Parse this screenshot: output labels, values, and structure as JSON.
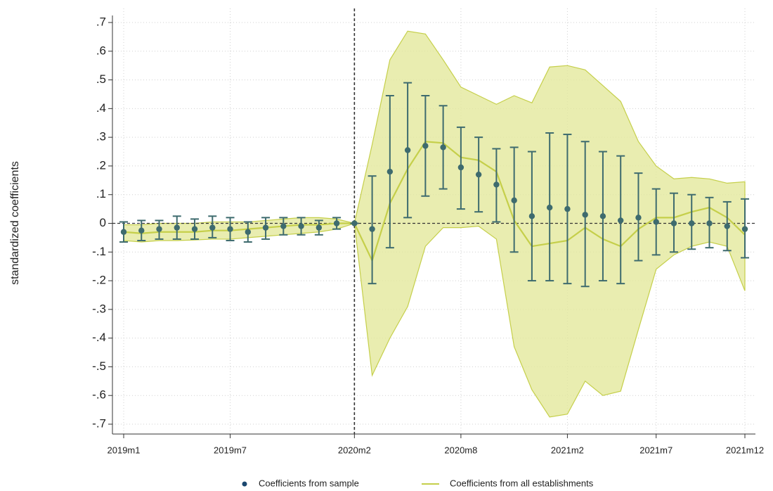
{
  "chart_data": {
    "type": "errorbar-band",
    "y_label": "standardized coefficients",
    "categories": [
      "2019m1",
      null,
      null,
      null,
      null,
      null,
      "2019m7",
      null,
      null,
      null,
      null,
      null,
      null,
      "2020m2",
      null,
      null,
      null,
      null,
      null,
      "2020m8",
      null,
      null,
      null,
      null,
      null,
      "2021m2",
      null,
      null,
      null,
      null,
      "2021m7",
      null,
      null,
      null,
      null,
      "2021m12"
    ],
    "ylim": [
      -0.7,
      0.7
    ],
    "yticks": [
      {
        "value": 0.7,
        "label": ".7"
      },
      {
        "value": 0.6,
        "label": ".6"
      },
      {
        "value": 0.5,
        "label": ".5"
      },
      {
        "value": 0.4,
        "label": ".4"
      },
      {
        "value": 0.3,
        "label": ".3"
      },
      {
        "value": 0.2,
        "label": ".2"
      },
      {
        "value": 0.1,
        "label": ".1"
      },
      0,
      {
        "value": -0.1,
        "label": "-.1"
      },
      {
        "value": -0.2,
        "label": "-.2"
      },
      {
        "value": -0.3,
        "label": "-.3"
      },
      {
        "value": -0.4,
        "label": "-.4"
      },
      {
        "value": -0.5,
        "label": "-.5"
      },
      {
        "value": -0.6,
        "label": "-.6"
      },
      {
        "value": -0.7,
        "label": "-.7"
      }
    ],
    "grid": true,
    "xline": "2020m2",
    "yline": 0,
    "series": [
      {
        "name": "Coefficients from sample",
        "color": "#1a476f",
        "bar_color": "#3e6b6e",
        "values": [
          -0.03,
          -0.025,
          -0.02,
          -0.015,
          -0.02,
          -0.015,
          -0.02,
          -0.03,
          -0.015,
          -0.01,
          -0.01,
          -0.015,
          0,
          0,
          -0.02,
          0.18,
          0.255,
          0.27,
          0.265,
          0.195,
          0.17,
          0.135,
          0.08,
          0.025,
          0.055,
          0.05,
          0.03,
          0.025,
          0.01,
          0.02,
          0.005,
          0,
          0,
          0,
          -0.01,
          -0.02
        ],
        "lower": [
          -0.065,
          -0.06,
          -0.055,
          -0.055,
          -0.055,
          -0.05,
          -0.06,
          -0.065,
          -0.055,
          -0.04,
          -0.04,
          -0.04,
          -0.02,
          0,
          -0.21,
          -0.085,
          0.02,
          0.095,
          0.12,
          0.05,
          0.04,
          0.005,
          -0.1,
          -0.2,
          -0.2,
          -0.21,
          -0.22,
          -0.2,
          -0.21,
          -0.13,
          -0.11,
          -0.1,
          -0.09,
          -0.085,
          -0.095,
          -0.12
        ],
        "upper": [
          0.005,
          0.01,
          0.01,
          0.025,
          0.015,
          0.025,
          0.02,
          0.005,
          0.02,
          0.02,
          0.02,
          0.01,
          0.02,
          0,
          0.165,
          0.445,
          0.49,
          0.445,
          0.41,
          0.335,
          0.3,
          0.26,
          0.265,
          0.25,
          0.315,
          0.31,
          0.285,
          0.25,
          0.235,
          0.175,
          0.12,
          0.105,
          0.1,
          0.09,
          0.075,
          0.085
        ]
      },
      {
        "name": "Coefficients from all establishments",
        "color": "#c5cf4a",
        "band_color": "#e4e99c",
        "values": [
          -0.03,
          -0.035,
          -0.03,
          -0.03,
          -0.03,
          -0.025,
          -0.025,
          -0.02,
          -0.015,
          -0.01,
          -0.005,
          -0.005,
          0,
          0,
          -0.13,
          0.07,
          0.19,
          0.285,
          0.28,
          0.23,
          0.22,
          0.18,
          0.01,
          -0.08,
          -0.07,
          -0.06,
          -0.015,
          -0.055,
          -0.08,
          -0.02,
          0.02,
          0.02,
          0.04,
          0.055,
          0.02,
          -0.04
        ],
        "lower": [
          -0.06,
          -0.065,
          -0.06,
          -0.06,
          -0.058,
          -0.055,
          -0.055,
          -0.05,
          -0.045,
          -0.04,
          -0.035,
          -0.03,
          -0.02,
          0,
          -0.53,
          -0.4,
          -0.29,
          -0.08,
          -0.015,
          -0.015,
          -0.01,
          -0.055,
          -0.43,
          -0.58,
          -0.675,
          -0.665,
          -0.55,
          -0.6,
          -0.585,
          -0.37,
          -0.16,
          -0.11,
          -0.08,
          -0.065,
          -0.08,
          -0.235
        ],
        "upper": [
          -0.005,
          -0.005,
          0,
          0,
          0,
          0.005,
          0.005,
          0.005,
          0.01,
          0.015,
          0.02,
          0.02,
          0.015,
          0,
          0.275,
          0.57,
          0.67,
          0.66,
          0.57,
          0.475,
          0.445,
          0.415,
          0.445,
          0.42,
          0.545,
          0.55,
          0.535,
          0.48,
          0.425,
          0.285,
          0.2,
          0.155,
          0.16,
          0.155,
          0.14,
          0.145
        ]
      }
    ]
  }
}
